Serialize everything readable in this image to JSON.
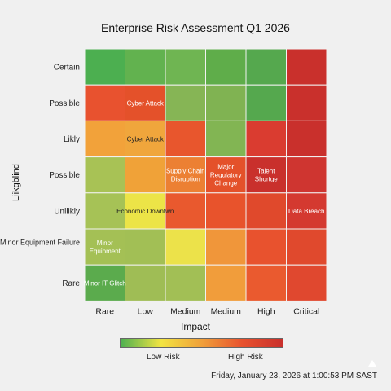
{
  "chart_data": {
    "type": "heatmap",
    "title": "Enterprise Risk Assessment Q1 2026",
    "xlabel": "Impact",
    "ylabel": "Liikgblind",
    "x_categories": [
      "Rare",
      "Low",
      "Medium",
      "Medium",
      "High",
      "Critical"
    ],
    "y_categories": [
      "Certain",
      "Possible",
      "Likly",
      "Possible",
      "Unllikly",
      "Minor Equipment Failure",
      "Rare"
    ],
    "cell_colors": [
      [
        "#4caf50",
        "#62b24f",
        "#6fb552",
        "#5fad4a",
        "#55a84e",
        "#c9302c"
      ],
      [
        "#e8522f",
        "#e4512a",
        "#86b555",
        "#80b352",
        "#55a84e",
        "#c9302c"
      ],
      [
        "#f2a23a",
        "#f0a63c",
        "#e8562d",
        "#82b553",
        "#da3c30",
        "#c9302c"
      ],
      [
        "#a8c255",
        "#f0a238",
        "#ec8033",
        "#e4512a",
        "#c9302c",
        "#cf3530"
      ],
      [
        "#a6c256",
        "#ece447",
        "#e9592e",
        "#e8532c",
        "#e0492c",
        "#d43930"
      ],
      [
        "#a4c055",
        "#a2bf55",
        "#ece24a",
        "#f0963a",
        "#e8522e",
        "#e0492d"
      ],
      [
        "#5bab4d",
        "#9fbd55",
        "#a2bf55",
        "#f19d3b",
        "#ea5a2f",
        "#e0482f"
      ]
    ],
    "cell_labels": [
      {
        "row": 1,
        "col": 1,
        "lines": [
          "Cyber Attack"
        ]
      },
      {
        "row": 2,
        "col": 1,
        "lines": [
          "Cyber Attack"
        ],
        "dark": true
      },
      {
        "row": 3,
        "col": 2,
        "lines": [
          "Supply Chain",
          "Disruption"
        ]
      },
      {
        "row": 3,
        "col": 3,
        "lines": [
          "Major",
          "Regulatory",
          "Change"
        ]
      },
      {
        "row": 3,
        "col": 4,
        "lines": [
          "Talent",
          "Shortge"
        ]
      },
      {
        "row": 4,
        "col": 1,
        "lines": [
          "Economic Downtwn"
        ],
        "dark": true
      },
      {
        "row": 4,
        "col": 5,
        "lines": [
          "Data Breach"
        ]
      },
      {
        "row": 5,
        "col": 0,
        "lines": [
          "Minor",
          "Equipment"
        ]
      },
      {
        "row": 6,
        "col": 0,
        "lines": [
          "Minor IT Glitch"
        ]
      }
    ],
    "colorbar": {
      "colors": [
        "#4caf50",
        "#f2e442",
        "#f0a03a",
        "#e8522e",
        "#c9302c"
      ],
      "low_label": "Low Risk",
      "high_label": "High Risk"
    }
  },
  "timestamp": "Friday, January 23, 2026 at 1:00:53 PM SAST"
}
